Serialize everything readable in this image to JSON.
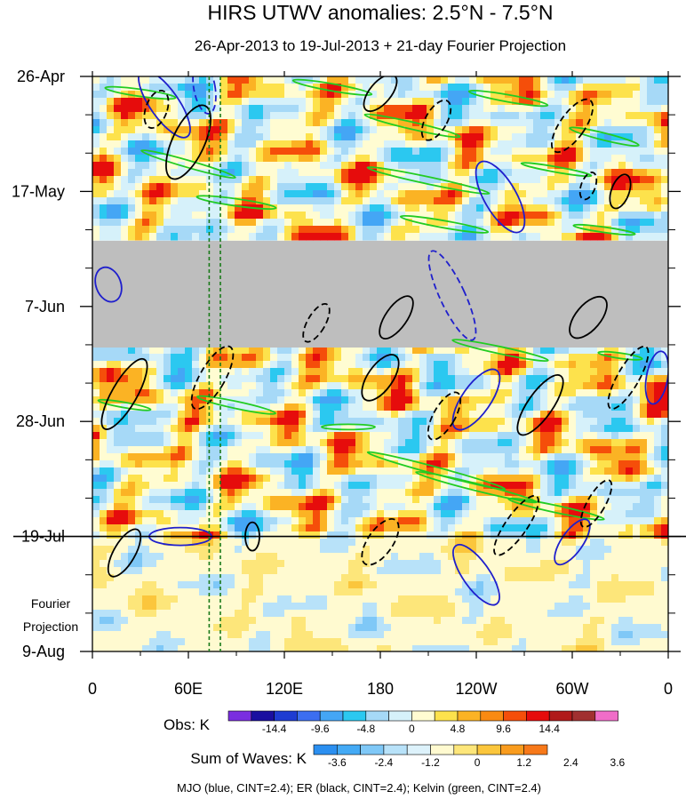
{
  "chart_data": {
    "type": "heatmap",
    "title": "HIRS UTWV anomalies: 2.5°N - 7.5°N",
    "subtitle": "26-Apr-2013 to 19-Jul-2013 + 21-day Fourier Projection",
    "x_ticks": [
      {
        "lon": 0,
        "label": "0"
      },
      {
        "lon": 60,
        "label": "60E"
      },
      {
        "lon": 120,
        "label": "120E"
      },
      {
        "lon": 180,
        "label": "180"
      },
      {
        "lon": 240,
        "label": "120W"
      },
      {
        "lon": 300,
        "label": "60W"
      },
      {
        "lon": 360,
        "label": "0"
      }
    ],
    "xlim": [
      0,
      360
    ],
    "y_ticks": [
      {
        "day": 0,
        "label": "26-Apr"
      },
      {
        "day": 21,
        "label": "17-May"
      },
      {
        "day": 42,
        "label": "7-Jun"
      },
      {
        "day": 63,
        "label": "28-Jun"
      },
      {
        "day": 84,
        "label": "19-Jul"
      },
      {
        "day": 105,
        "label": "9-Aug"
      }
    ],
    "ylim_days": [
      0,
      105
    ],
    "observation_end_day": 84,
    "missing_data_days": [
      30,
      49.5
    ],
    "projection_label": "Fourier Projection",
    "vertical_marker_lons": [
      73,
      80
    ],
    "obs_colorbar": {
      "title": "Obs: K",
      "levels": [
        "-14.4",
        "-9.6",
        "-4.8",
        "0",
        "4.8",
        "9.6",
        "14.4"
      ],
      "colors": [
        "#7a2ee0",
        "#1a0fa0",
        "#1e3cd2",
        "#3c6ef0",
        "#44a6f5",
        "#2bc8f0",
        "#a6d9f7",
        "#d6f1fa",
        "#fffcd2",
        "#fde24c",
        "#fbb324",
        "#f98a12",
        "#f54e0a",
        "#e60c0c",
        "#b01a1a",
        "#a13030",
        "#f06dc8"
      ]
    },
    "waves_colorbar": {
      "title": "Sum of Waves: K",
      "levels": [
        "-3.6",
        "-2.4",
        "-1.2",
        "0",
        "1.2",
        "2.4",
        "3.6"
      ],
      "colors": [
        "#2b8ff0",
        "#44aaf5",
        "#7fc8f7",
        "#b8e2f9",
        "#ddf2fb",
        "#fffad0",
        "#fde67a",
        "#fbc63c",
        "#f99c1e",
        "#f7791a"
      ]
    },
    "footer": "MJO (blue, CINT=2.4); ER (black, CINT=2.4); Kelvin (green, CINT=2.4)",
    "contour_colors": {
      "mjo": "#1f1fcc",
      "er": "#000000",
      "kelvin": "#22cc22"
    }
  }
}
